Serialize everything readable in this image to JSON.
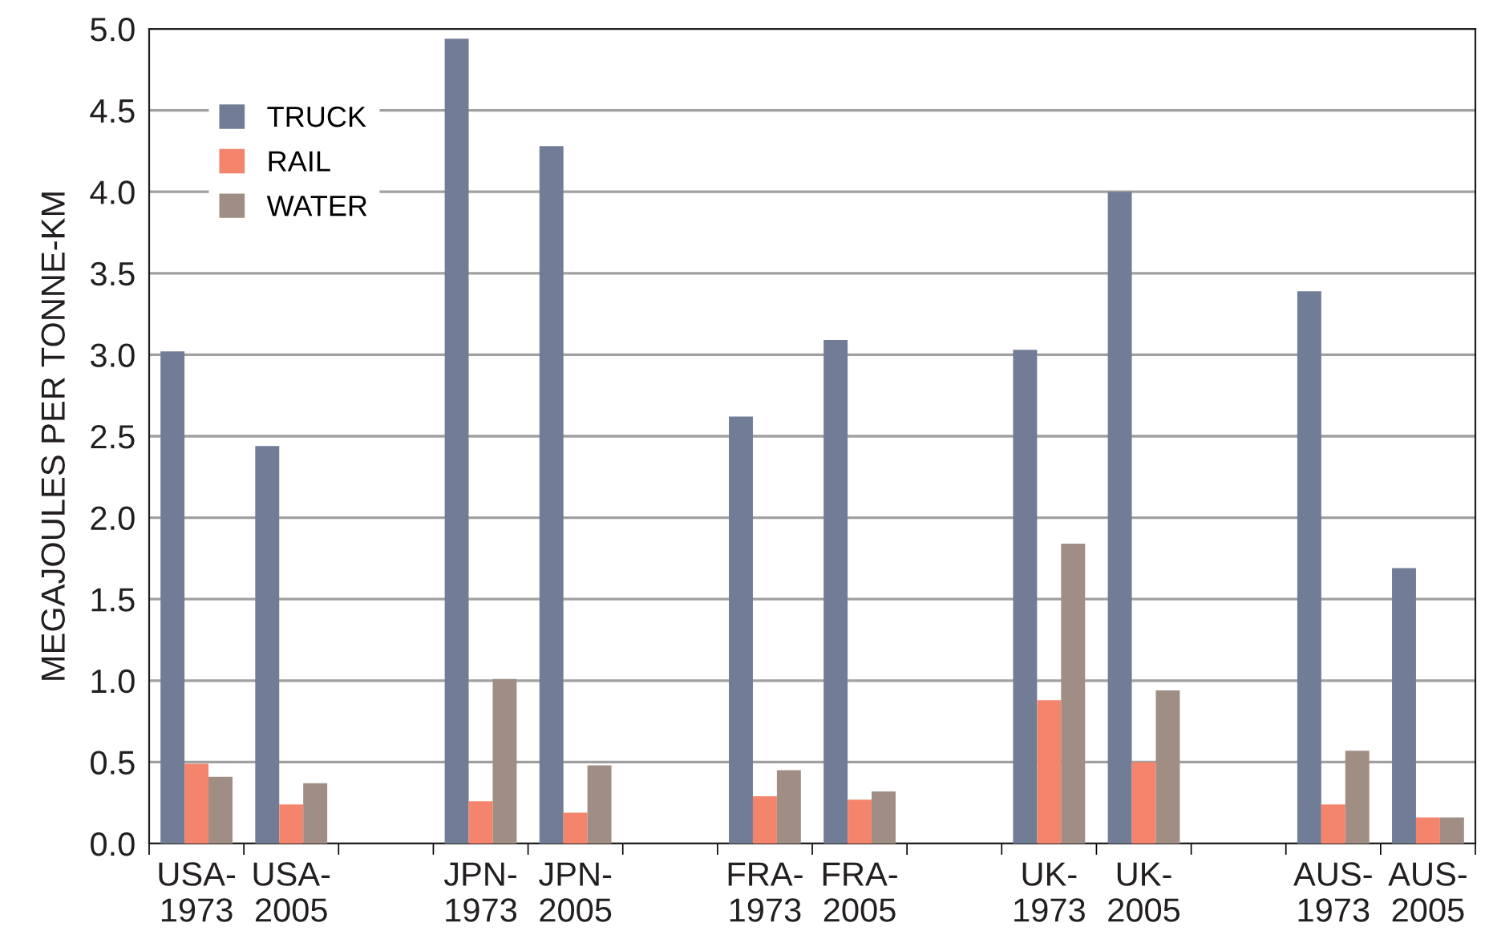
{
  "chart_data": {
    "type": "bar",
    "ylabel": "MEGAJOULES PER TONNE-KM",
    "categories": [
      "USA-\n1973",
      "USA-\n2005",
      null,
      "JPN-\n1973",
      "JPN-\n2005",
      null,
      "FRA-\n1973",
      "FRA-\n2005",
      null,
      "UK-\n1973",
      "UK-\n2005",
      null,
      "AUS-\n1973",
      "AUS-\n2005"
    ],
    "series": [
      {
        "name": "TRUCK",
        "color": "#717d96",
        "values": [
          3.02,
          2.44,
          null,
          4.94,
          4.28,
          null,
          2.62,
          3.09,
          null,
          3.03,
          4.0,
          null,
          3.39,
          1.69
        ]
      },
      {
        "name": "RAIL",
        "color": "#f4846c",
        "values": [
          0.49,
          0.24,
          null,
          0.26,
          0.19,
          null,
          0.29,
          0.27,
          null,
          0.88,
          0.5,
          null,
          0.24,
          0.16
        ]
      },
      {
        "name": "WATER",
        "color": "#a08e84",
        "values": [
          0.41,
          0.37,
          null,
          1.01,
          0.48,
          null,
          0.45,
          0.32,
          null,
          1.84,
          0.94,
          null,
          0.57,
          0.16
        ]
      }
    ],
    "ylim": [
      0,
      5.0
    ],
    "yticks": [
      {
        "value": 0,
        "label": "0.0"
      },
      {
        "value": 0.5,
        "label": "0.5"
      },
      {
        "value": 1.0,
        "label": "1.0"
      },
      {
        "value": 1.5,
        "label": "1.5"
      },
      {
        "value": 2.0,
        "label": "2.0"
      },
      {
        "value": 2.5,
        "label": "2.5"
      },
      {
        "value": 3.0,
        "label": "3.0"
      },
      {
        "value": 3.5,
        "label": "3.5"
      },
      {
        "value": 4.0,
        "label": "4.0"
      },
      {
        "value": 4.5,
        "label": "4.5"
      },
      {
        "value": 5.0,
        "label": "5.0"
      }
    ],
    "grid": "y",
    "legend": "top left"
  }
}
